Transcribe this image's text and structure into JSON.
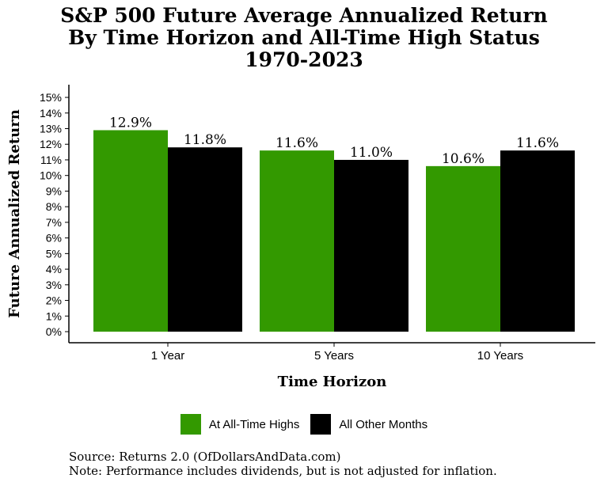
{
  "colors": {
    "primary": "#339900",
    "secondary": "#000000"
  },
  "chart_data": {
    "type": "bar",
    "title_lines": [
      "S&P 500 Future Average Annualized Return",
      "By Time Horizon and All-Time High Status",
      "1970-2023"
    ],
    "xlabel": "Time Horizon",
    "ylabel": "Future Annualized Return",
    "categories": [
      "1 Year",
      "5 Years",
      "10 Years"
    ],
    "series": [
      {
        "name": "At All-Time Highs",
        "color": "#339900",
        "values": [
          12.9,
          11.6,
          10.6
        ],
        "labels": [
          "12.9%",
          "11.6%",
          "10.6%"
        ]
      },
      {
        "name": "All Other Months",
        "color": "#000000",
        "values": [
          11.8,
          11.0,
          11.6
        ],
        "labels": [
          "11.8%",
          "11.0%",
          "11.6%"
        ]
      }
    ],
    "ylim": [
      0,
      15
    ],
    "yticks": [
      "0%",
      "1%",
      "2%",
      "3%",
      "4%",
      "5%",
      "6%",
      "7%",
      "8%",
      "9%",
      "10%",
      "11%",
      "12%",
      "13%",
      "14%",
      "15%"
    ],
    "grid": false,
    "legend_position": "bottom"
  },
  "notes": {
    "source": "Source:  Returns 2.0 (OfDollarsAndData.com)",
    "note": "Note: Performance includes dividends, but is not adjusted for inflation."
  }
}
